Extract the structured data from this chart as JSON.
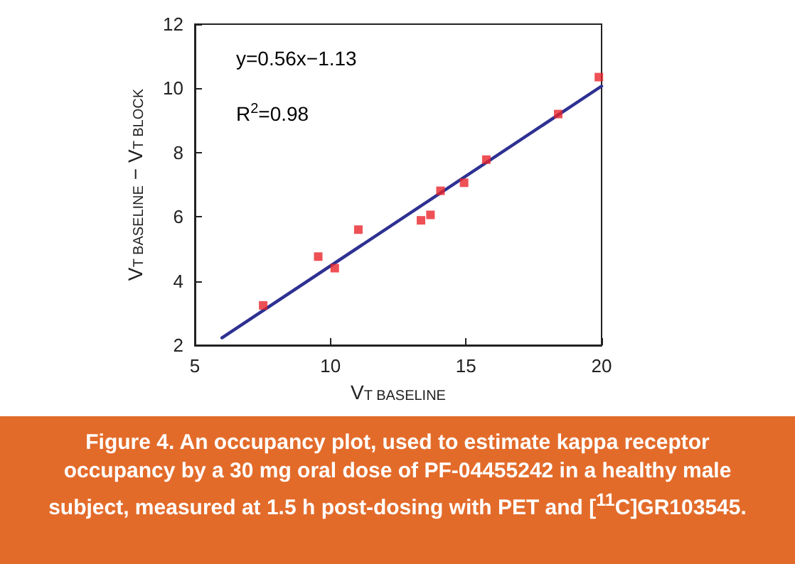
{
  "chart_data": {
    "type": "scatter",
    "xlabel": "V$_{T BASELINE}$",
    "ylabel": "V$_{T BASELINE}$ − V$_{T BLOCK}$",
    "xlim": [
      5,
      20
    ],
    "xticks": [
      5,
      10,
      15,
      20
    ],
    "ylim": [
      2,
      12
    ],
    "yticks": [
      2,
      4,
      6,
      8,
      10,
      12
    ],
    "grid": false,
    "series": [
      {
        "marker": "square",
        "color": "#e8262b",
        "x": [
          7.52,
          9.55,
          10.16,
          11.03,
          13.34,
          13.69,
          14.06,
          14.93,
          15.75,
          18.4,
          19.9
        ],
        "values": [
          3.24,
          4.76,
          4.4,
          5.6,
          5.89,
          6.06,
          6.81,
          7.06,
          7.78,
          9.2,
          10.35
        ]
      },
      {
        "type": "line",
        "marker": "none",
        "color": "#2e3192",
        "x": [
          6,
          20
        ],
        "values": [
          2.23,
          10.07
        ]
      }
    ],
    "annotations": [
      "y=0.56x−1.13",
      "R$^{2}$=0.98",
      "Figure 4.  An occupancy plot, used to estimate kappa receptor occupancy by a 30 mg oral dose of PF-04455242 in a healthy male subject, measured at 1.5 h post-dosing with PET and [$^{11}$C]GR103545."
    ]
  }
}
